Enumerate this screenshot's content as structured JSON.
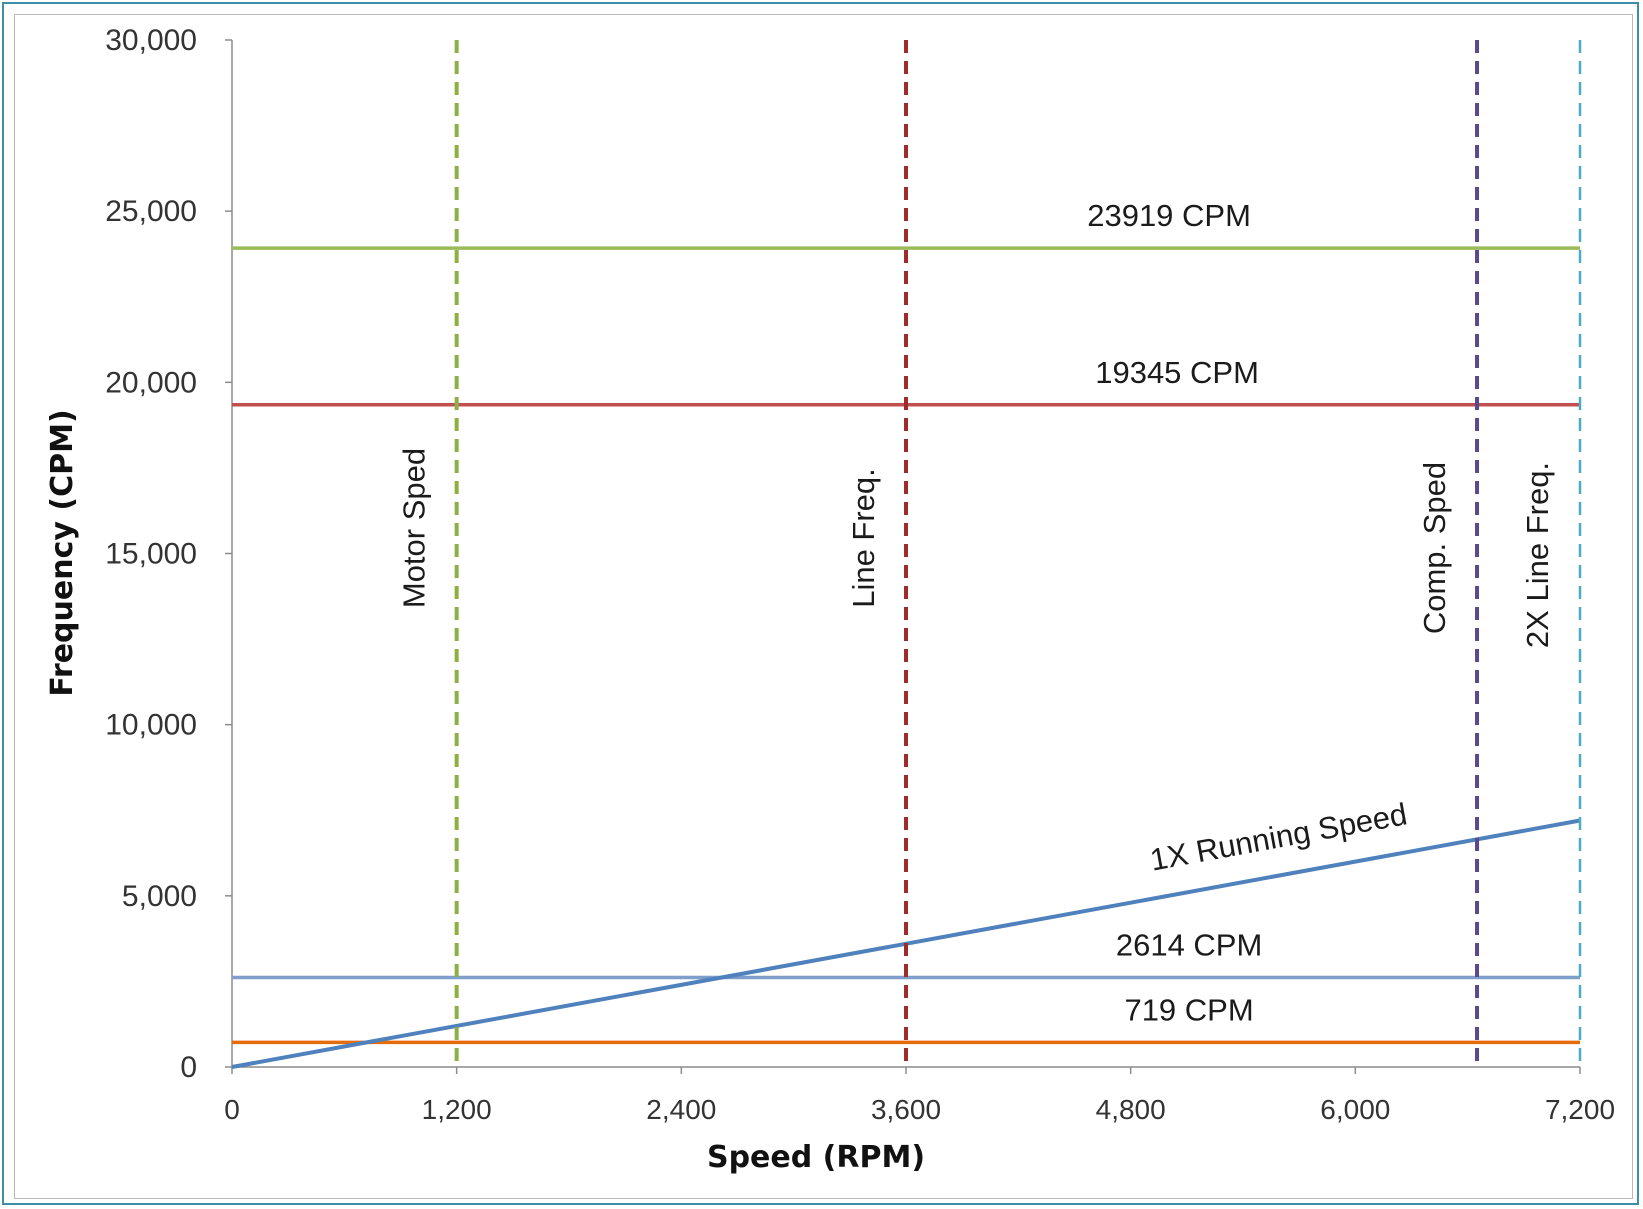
{
  "chart_data": {
    "type": "line",
    "xlabel": "Speed (RPM)",
    "ylabel": "Frequency (CPM)",
    "xlim": [
      0,
      7200
    ],
    "ylim": [
      0,
      30000
    ],
    "x_ticks": [
      0,
      1200,
      2400,
      3600,
      4800,
      6000,
      7200
    ],
    "x_tick_labels": [
      "0",
      "1,200",
      "2,400",
      "3,600",
      "4,800",
      "6,000",
      "7,200"
    ],
    "y_ticks": [
      0,
      5000,
      10000,
      15000,
      20000,
      25000,
      30000
    ],
    "y_tick_labels": [
      "0",
      "5,000",
      "10,000",
      "15,000",
      "20,000",
      "25,000",
      "30,000"
    ],
    "grid": false,
    "horizontal_lines": [
      {
        "y": 23919,
        "label": "23919 CPM",
        "color": "#9bbb59"
      },
      {
        "y": 19345,
        "label": "19345 CPM",
        "color": "#c0504d"
      },
      {
        "y": 2614,
        "label": "2614 CPM",
        "color": "#7f9ec9"
      },
      {
        "y": 719,
        "label": "719 CPM",
        "color": "#e46c0a"
      }
    ],
    "vertical_lines": [
      {
        "x": 1200,
        "label": "Motor Sped",
        "color": "#8db043"
      },
      {
        "x": 3600,
        "label": "Line Freq.",
        "color": "#a02b2b"
      },
      {
        "x": 6650,
        "label": "Comp. Sped",
        "color": "#5b4a8b"
      },
      {
        "x": 7200,
        "label": "2X Line Freq.",
        "color": "#4bacc6"
      }
    ],
    "series": [
      {
        "name": "1X Running Speed",
        "color": "#4f81bd",
        "x": [
          0,
          7200
        ],
        "y": [
          0,
          7200
        ]
      }
    ]
  }
}
